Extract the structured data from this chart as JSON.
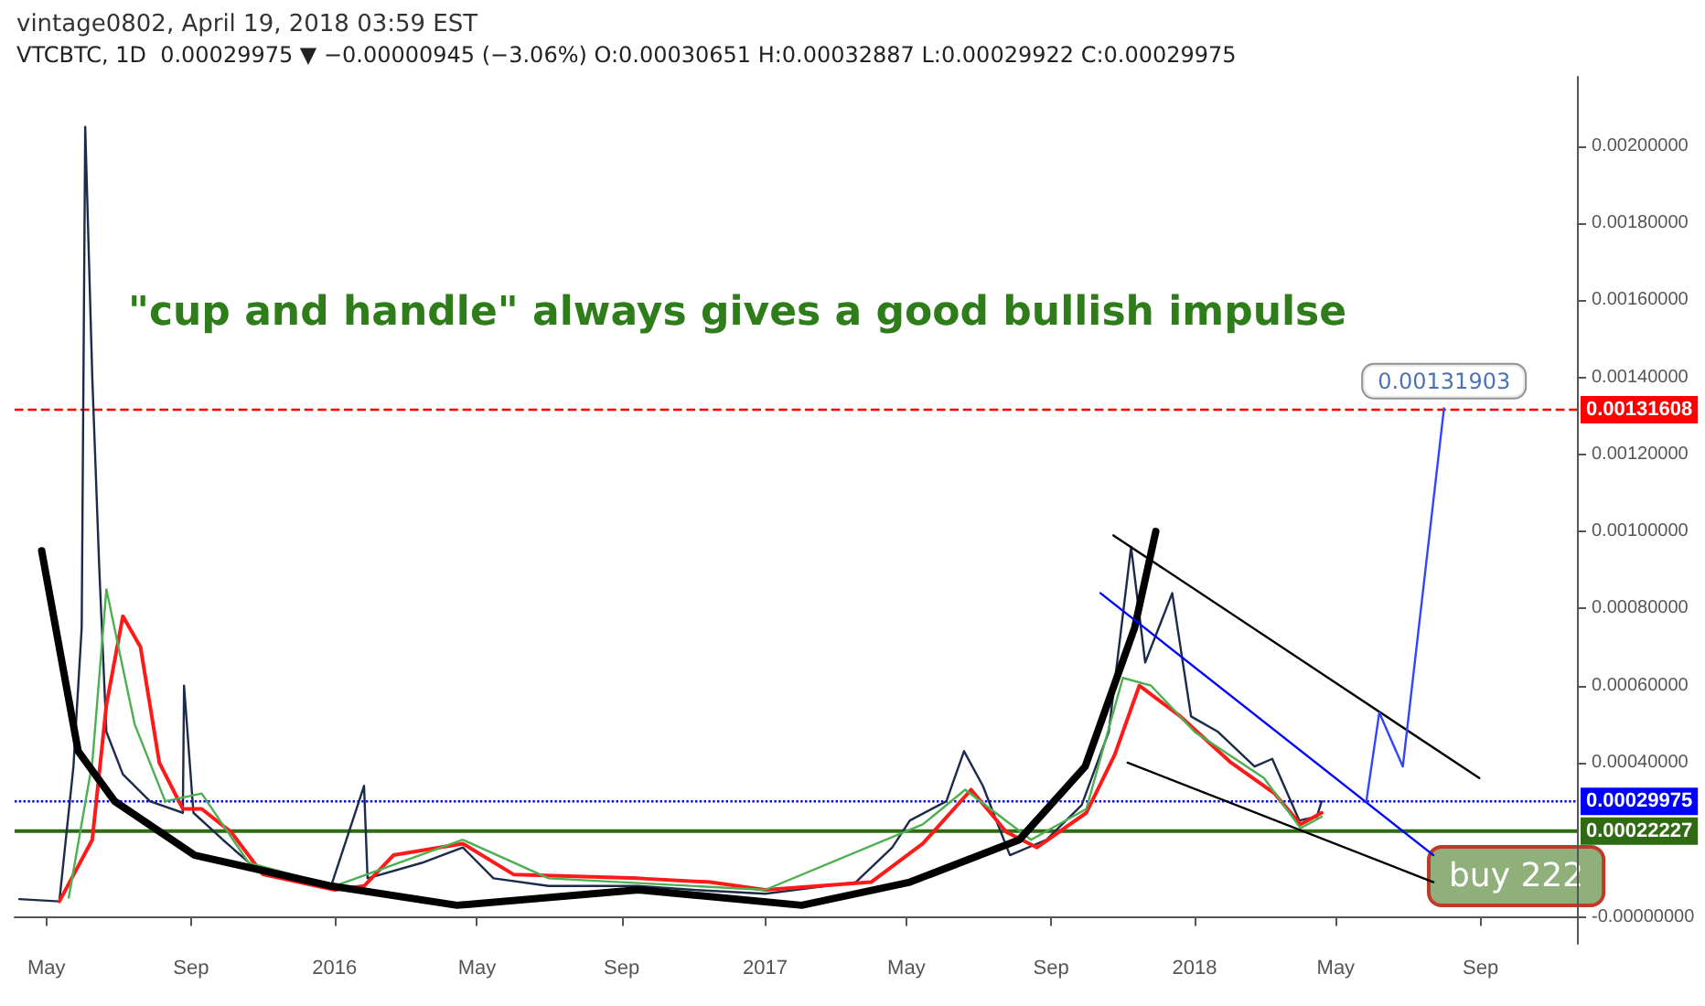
{
  "chart_data": {
    "type": "line",
    "title": "vintage0802, April 19, 2018 03:59 EST",
    "subtitle": "VTCBTC, 1D  0.00029975 ▼ −0.00000945 (−3.06%) O:0.00030651 H:0.00032887 L:0.00029922 C:0.00029975",
    "annotations": [
      "\"cup and handle\" always gives a good bullish impulse",
      {
        "text": "0.00131903",
        "x": "2018-08-01",
        "y": 0.00131903
      },
      "buy 222"
    ],
    "xlim": [
      "2015-04-04",
      "2018-11-22"
    ],
    "xticks": [
      {
        "value": "2015-05-01",
        "label": "May"
      },
      {
        "value": "2015-09-01",
        "label": "Sep"
      },
      {
        "value": "2016-01-01",
        "label": "2016"
      },
      {
        "value": "2016-05-01",
        "label": "May"
      },
      {
        "value": "2016-09-01",
        "label": "Sep"
      },
      {
        "value": "2017-01-01",
        "label": "2017"
      },
      {
        "value": "2017-05-01",
        "label": "May"
      },
      {
        "value": "2017-09-01",
        "label": "Sep"
      },
      {
        "value": "2018-01-01",
        "label": "2018"
      },
      {
        "value": "2018-05-01",
        "label": "May"
      },
      {
        "value": "2018-09-01",
        "label": "Sep"
      }
    ],
    "ylim": [
      -7e-05,
      0.00218
    ],
    "yticks": [
      {
        "value": 0,
        "label": "-0.00000000"
      },
      {
        "value": 0.0004,
        "label": "0.00040000"
      },
      {
        "value": 0.0006,
        "label": "0.00060000"
      },
      {
        "value": 0.0008,
        "label": "0.00080000"
      },
      {
        "value": 0.001,
        "label": "0.00100000"
      },
      {
        "value": 0.0012,
        "label": "0.00120000"
      },
      {
        "value": 0.0014,
        "label": "0.00140000"
      },
      {
        "value": 0.0016,
        "label": "0.00160000"
      },
      {
        "value": 0.0018,
        "label": "0.00180000"
      },
      {
        "value": 0.002,
        "label": "0.00200000"
      }
    ],
    "grid": false,
    "marker": "none",
    "line_style": "solid",
    "ref_lines": [
      {
        "axis": "y",
        "value": 0.00131608,
        "label": "0.00131608",
        "color": "#ff0000",
        "line_style": "dashed"
      },
      {
        "axis": "y",
        "value": 0.00029975,
        "label": "0.00029975",
        "color": "#0000ff",
        "line_style": "dotted"
      },
      {
        "axis": "y",
        "value": 0.00022227,
        "label": "0.00022227",
        "color": "#2e6b12",
        "line_style": "solid"
      }
    ],
    "series": [
      {
        "color": "#1c2b4a",
        "x": [
          "2015-04-08",
          "2015-05-12",
          "2015-05-24",
          "2015-05-31",
          "2015-06-03",
          "2015-06-09",
          "2015-06-15",
          "2015-06-21",
          "2015-07-05",
          "2015-07-28",
          "2015-08-25",
          "2015-08-26",
          "2015-09-03",
          "2015-09-28",
          "2015-10-28",
          "2015-12-29",
          "2016-01-26",
          "2016-01-29",
          "2016-03-15",
          "2016-04-19",
          "2016-05-15",
          "2016-07-01",
          "2016-09-15",
          "2016-11-01",
          "2017-01-01",
          "2017-03-19",
          "2017-04-19",
          "2017-05-04",
          "2017-06-04",
          "2017-06-19",
          "2017-07-05",
          "2017-07-28",
          "2017-08-28",
          "2017-09-27",
          "2017-10-20",
          "2017-11-08",
          "2017-11-20",
          "2017-12-13",
          "2017-12-29",
          "2018-01-21",
          "2018-02-21",
          "2018-03-08",
          "2018-03-31",
          "2018-04-15",
          "2018-04-19"
        ],
        "values": [
          4.6e-05,
          4e-05,
          0.00039,
          0.00075,
          0.00205,
          0.0014,
          0.0009,
          0.00048,
          0.00037,
          0.0003,
          0.00027,
          0.0006,
          0.00027,
          0.0002,
          0.00012,
          8e-05,
          0.00034,
          0.0001,
          0.00014,
          0.00018,
          0.0001,
          8e-05,
          8e-05,
          7e-05,
          6e-05,
          9e-05,
          0.00018,
          0.00025,
          0.0003,
          0.00043,
          0.00034,
          0.00016,
          0.0002,
          0.00029,
          0.00048,
          0.00096,
          0.00066,
          0.00084,
          0.00052,
          0.00048,
          0.00039,
          0.00041,
          0.00025,
          0.00026,
          0.0003
        ]
      },
      {
        "color": "#ff1a1a",
        "x": [
          "2015-05-12",
          "2015-06-09",
          "2015-06-21",
          "2015-07-05",
          "2015-07-20",
          "2015-08-05",
          "2015-08-25",
          "2015-09-10",
          "2015-10-05",
          "2015-11-01",
          "2016-01-01",
          "2016-01-26",
          "2016-02-20",
          "2016-04-19",
          "2016-06-01",
          "2016-09-15",
          "2016-11-15",
          "2017-01-01",
          "2017-04-01",
          "2017-05-15",
          "2017-06-25",
          "2017-07-25",
          "2017-08-20",
          "2017-10-01",
          "2017-10-25",
          "2017-11-15",
          "2017-12-20",
          "2018-02-01",
          "2018-03-10",
          "2018-04-01",
          "2018-04-19"
        ],
        "values": [
          4e-05,
          0.0002,
          0.00055,
          0.00078,
          0.0007,
          0.0004,
          0.00028,
          0.00028,
          0.00022,
          0.00011,
          7e-05,
          8e-05,
          0.00016,
          0.00019,
          0.00011,
          0.0001,
          9e-05,
          7e-05,
          9e-05,
          0.00019,
          0.00033,
          0.00022,
          0.00018,
          0.00027,
          0.00042,
          0.0006,
          0.00052,
          0.0004,
          0.00032,
          0.00024,
          0.00027
        ]
      },
      {
        "color": "#4caf50",
        "x": [
          "2015-05-20",
          "2015-06-09",
          "2015-06-21",
          "2015-07-15",
          "2015-08-10",
          "2015-09-10",
          "2015-10-20",
          "2016-01-01",
          "2016-04-19",
          "2016-07-01",
          "2017-01-01",
          "2017-05-15",
          "2017-06-20",
          "2017-08-15",
          "2017-10-01",
          "2017-11-01",
          "2017-11-25",
          "2018-01-01",
          "2018-03-01",
          "2018-04-01",
          "2018-04-19"
        ],
        "values": [
          5e-05,
          0.0004,
          0.00085,
          0.0005,
          0.0003,
          0.00032,
          0.00014,
          8e-05,
          0.0002,
          0.0001,
          7e-05,
          0.00024,
          0.00033,
          0.0002,
          0.00028,
          0.00062,
          0.0006,
          0.00048,
          0.00036,
          0.00023,
          0.00026
        ]
      },
      {
        "color": "#000000",
        "x": [
          "2015-04-27",
          "2015-05-28",
          "2015-06-28",
          "2015-09-04",
          "2015-12-29",
          "2016-04-14",
          "2016-09-15",
          "2017-02-01",
          "2017-05-04",
          "2017-08-05",
          "2017-09-30",
          "2017-11-11",
          "2017-11-29"
        ],
        "values": [
          0.00095,
          0.00043,
          0.0003,
          0.00016,
          8e-05,
          3e-05,
          7e-05,
          3e-05,
          9e-05,
          0.0002,
          0.00039,
          0.00075,
          0.001
        ]
      },
      {
        "color": "#000000",
        "x": [
          "2017-10-24",
          "2018-08-31"
        ],
        "values": [
          0.00099,
          0.00036
        ]
      },
      {
        "color": "#000000",
        "x": [
          "2017-11-05",
          "2018-07-23"
        ],
        "values": [
          0.0004,
          9e-05
        ]
      },
      {
        "color": "#0000ff",
        "x": [
          "2017-10-13",
          "2018-07-23"
        ],
        "values": [
          0.00084,
          0.00016
        ]
      },
      {
        "color": "#3344ff",
        "x": [
          "2018-05-27",
          "2018-06-07",
          "2018-06-27",
          "2018-08-01"
        ],
        "values": [
          0.0003,
          0.00053,
          0.00039,
          0.00132
        ]
      }
    ]
  }
}
